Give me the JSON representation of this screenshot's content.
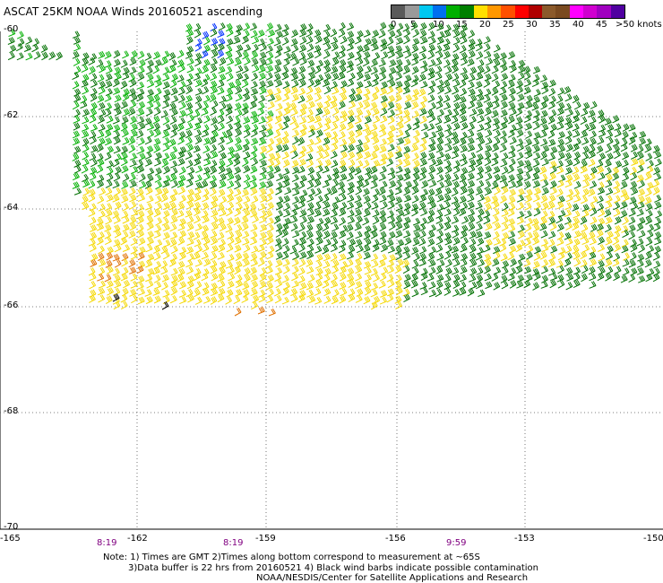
{
  "title": "ASCAT 25KM NOAA Winds 20160521 ascending",
  "legend": {
    "labels": [
      "0",
      "5",
      "10",
      "15",
      "20",
      "25",
      "30",
      "35",
      "40",
      "45",
      ">50 knots"
    ],
    "colors": [
      "#5a5a5a",
      "#9a9a9a",
      "#00c8f0",
      "#0070f0",
      "#00b000",
      "#008000",
      "#ffe000",
      "#ff9800",
      "#ff5000",
      "#ff0000",
      "#b00000",
      "#8b5a2b",
      "#7a4a20",
      "#ff00ff",
      "#d000d0",
      "#a000c0",
      "#5000a0"
    ]
  },
  "axes": {
    "lat_labels": [
      "-60",
      "-62",
      "-64",
      "-66",
      "-68",
      "-70"
    ],
    "lon_labels": [
      "-165",
      "-162",
      "-159",
      "-156",
      "-153",
      "-150"
    ]
  },
  "times": [
    "8:19",
    "8:19",
    "9:59"
  ],
  "notes": {
    "line1": "Note: 1) Times are GMT 2)Times along bottom correspond to measurement at ~65S",
    "line2": "3)Data buffer is 22 hrs from 20160521 4) Black wind barbs indicate possible contamination",
    "line3": "NOAA/NESDIS/Center for Satellite Applications and Research"
  },
  "barb_colors": {
    "yellow": "#f5d800",
    "green_light": "#00b000",
    "green_dark": "#007000",
    "blue": "#0030ff",
    "orange": "#e07000",
    "black": "#000000"
  }
}
